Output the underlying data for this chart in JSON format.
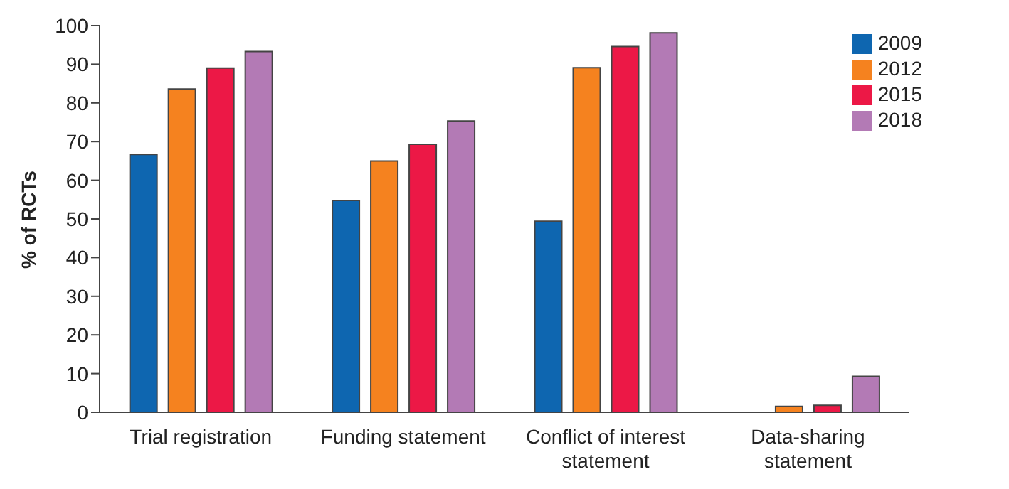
{
  "chart_data": {
    "type": "bar",
    "ylabel": "% of RCTs",
    "categories": [
      "Trial registration",
      "Funding statement",
      "Conflict of interest statement",
      "Data-sharing statement"
    ],
    "series": [
      {
        "name": "2009",
        "color": "#0e66b0",
        "values": [
          66.7,
          54.8,
          49.4,
          0
        ]
      },
      {
        "name": "2012",
        "color": "#f5821f",
        "values": [
          83.6,
          65,
          89.1,
          1.5
        ]
      },
      {
        "name": "2015",
        "color": "#ec1846",
        "values": [
          89,
          69.3,
          94.6,
          1.8
        ]
      },
      {
        "name": "2018",
        "color": "#b37ab5",
        "values": [
          93.3,
          75.3,
          98.1,
          9.3
        ]
      }
    ],
    "ylim": [
      0,
      100
    ],
    "yticks": [
      0,
      10,
      20,
      30,
      40,
      50,
      60,
      70,
      80,
      90,
      100
    ],
    "grid": false,
    "legend": "top right"
  }
}
